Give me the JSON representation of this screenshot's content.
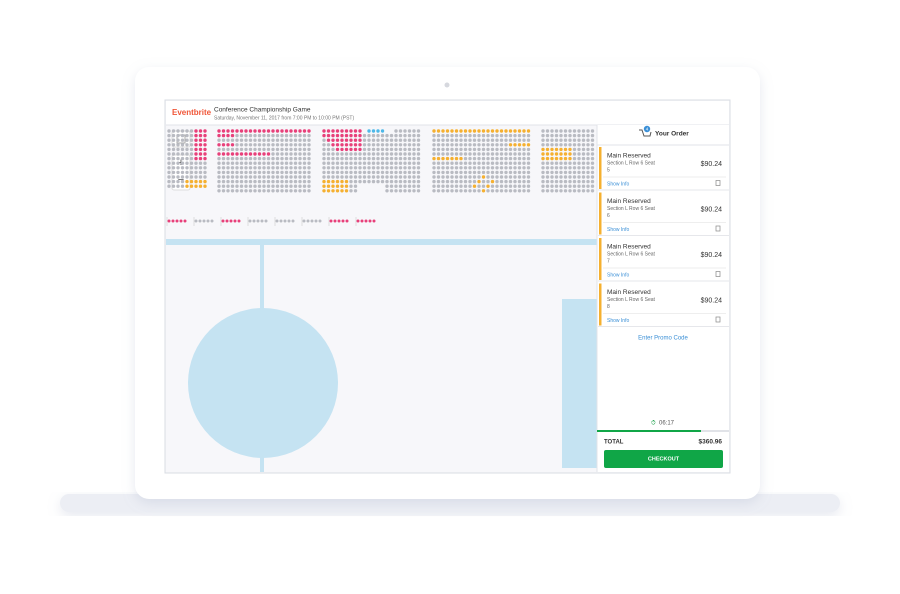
{
  "header": {
    "brand": "Eventbrite",
    "title": "Conference Championship Game",
    "date": "Saturday, November 11, 2017 from 7:00 PM to 10:00 PM (PST)"
  },
  "map_controls": {
    "zoom_in": "+",
    "zoom_out": "−"
  },
  "order": {
    "title": "Your Order",
    "cart_count": "4",
    "items": [
      {
        "name": "Main Reserved",
        "seat": "Section L Row 6 Seat",
        "seat_number": "5",
        "price": "$90.24",
        "link": "Show Info"
      },
      {
        "name": "Main Reserved",
        "seat": "Section L Row 6 Seat",
        "seat_number": "6",
        "price": "$90.24",
        "link": "Show Info"
      },
      {
        "name": "Main Reserved",
        "seat": "Section L Row 6 Seat",
        "seat_number": "7",
        "price": "$90.24",
        "link": "Show Info"
      },
      {
        "name": "Main Reserved",
        "seat": "Section L Row 6 Seat",
        "seat_number": "8",
        "price": "$90.24",
        "link": "Show Info"
      }
    ],
    "promo": "Enter Promo Code",
    "timer": "06:17",
    "total_label": "TOTAL",
    "total": "$360.96",
    "checkout": "CHECKOUT"
  }
}
